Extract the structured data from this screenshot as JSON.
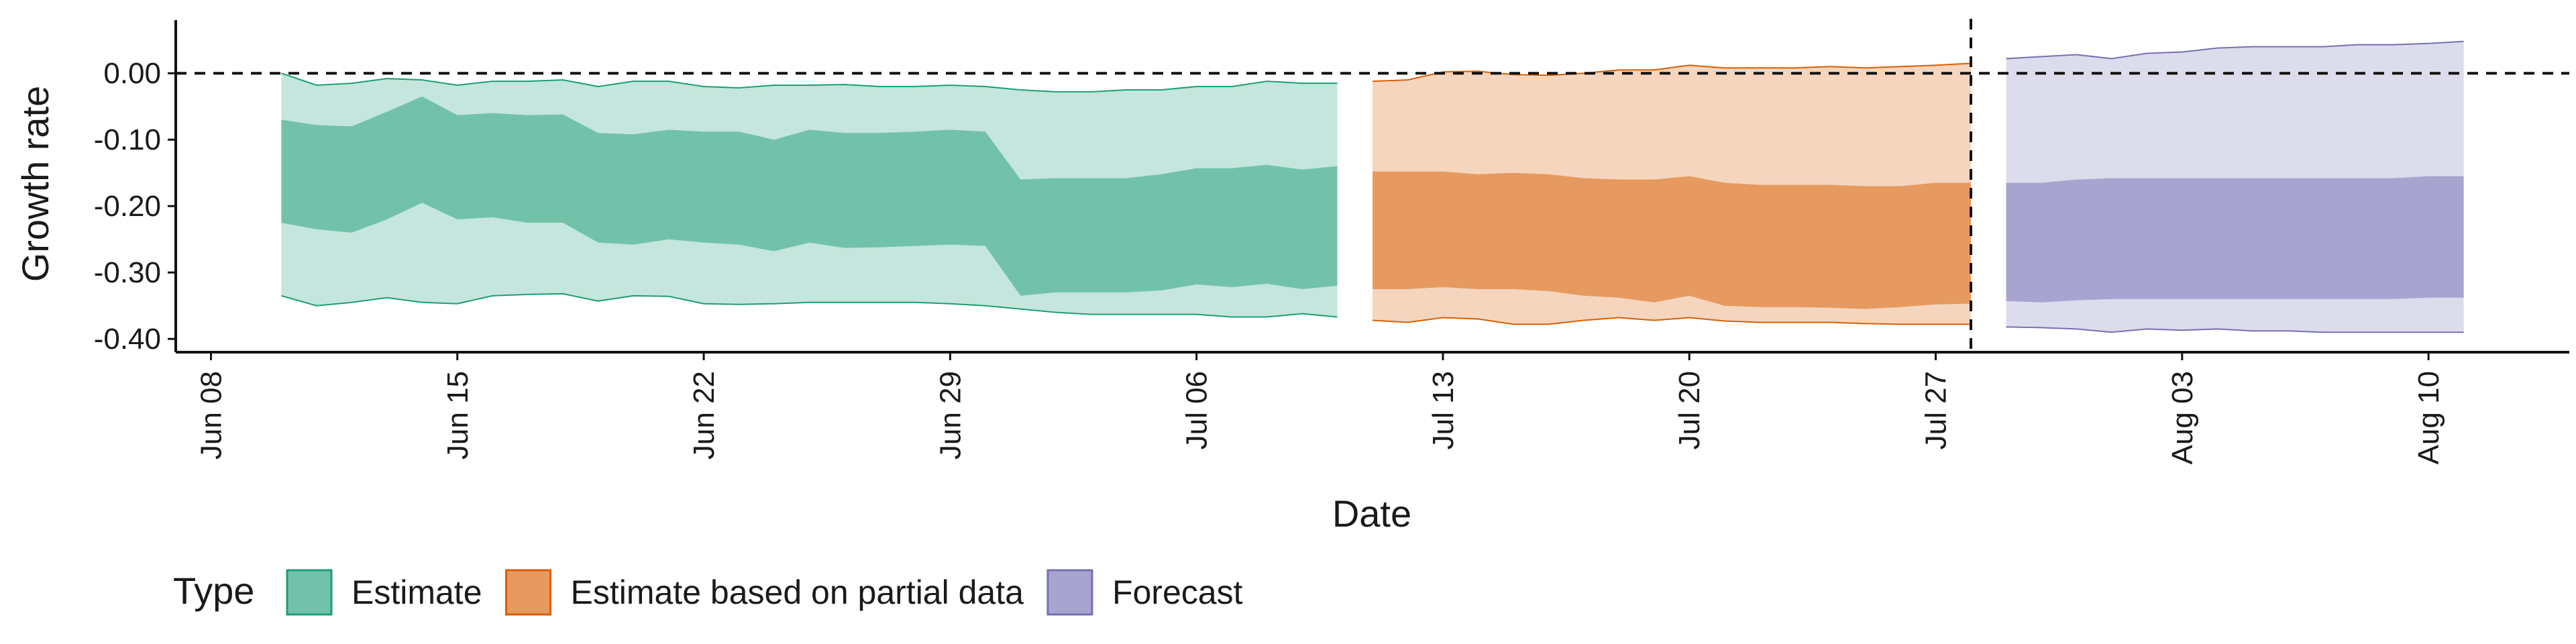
{
  "chart_data": {
    "type": "area",
    "title": "",
    "xlabel": "Date",
    "ylabel": "Growth rate",
    "x_range": [
      "2020-06-07",
      "2020-08-14"
    ],
    "ylim": [
      -0.42,
      0.08
    ],
    "y_ticks": [
      0.0,
      -0.1,
      -0.2,
      -0.3,
      -0.4
    ],
    "y_tick_labels": [
      "0.00",
      "-0.10",
      "-0.20",
      "-0.30",
      "-0.40"
    ],
    "x_ticks": [
      "2020-06-08",
      "2020-06-15",
      "2020-06-22",
      "2020-06-29",
      "2020-07-06",
      "2020-07-13",
      "2020-07-20",
      "2020-07-27",
      "2020-08-03",
      "2020-08-10"
    ],
    "x_tick_labels": [
      "Jun 08",
      "Jun 15",
      "Jun 22",
      "Jun 29",
      "Jul 06",
      "Jul 13",
      "Jul 20",
      "Jul 27",
      "Aug 03",
      "Aug 10"
    ],
    "reference_lines": {
      "horizontal_y": 0.0,
      "vertical_x": "2020-07-28"
    },
    "grid": false,
    "legend": {
      "title": "Type",
      "position": "bottom"
    },
    "series": [
      {
        "name": "Estimate",
        "color": "#1b9e77",
        "fill_inner": "#72c2aa",
        "fill_outer": "#c4e6dc",
        "dates": [
          "2020-06-10",
          "2020-06-11",
          "2020-06-12",
          "2020-06-13",
          "2020-06-14",
          "2020-06-15",
          "2020-06-16",
          "2020-06-17",
          "2020-06-18",
          "2020-06-19",
          "2020-06-20",
          "2020-06-21",
          "2020-06-22",
          "2020-06-23",
          "2020-06-24",
          "2020-06-25",
          "2020-06-26",
          "2020-06-27",
          "2020-06-28",
          "2020-06-29",
          "2020-06-30",
          "2020-07-01",
          "2020-07-02",
          "2020-07-03",
          "2020-07-04",
          "2020-07-05",
          "2020-07-06",
          "2020-07-07",
          "2020-07-08",
          "2020-07-09",
          "2020-07-10"
        ],
        "lower_90": [
          -0.335,
          -0.35,
          -0.345,
          -0.338,
          -0.345,
          -0.347,
          -0.335,
          -0.333,
          -0.332,
          -0.343,
          -0.335,
          -0.336,
          -0.347,
          -0.348,
          -0.347,
          -0.345,
          -0.345,
          -0.345,
          -0.345,
          -0.347,
          -0.35,
          -0.355,
          -0.36,
          -0.363,
          -0.363,
          -0.363,
          -0.363,
          -0.367,
          -0.367,
          -0.362,
          -0.367
        ],
        "lower_50": [
          -0.225,
          -0.235,
          -0.24,
          -0.22,
          -0.195,
          -0.22,
          -0.217,
          -0.225,
          -0.225,
          -0.255,
          -0.258,
          -0.25,
          -0.255,
          -0.258,
          -0.268,
          -0.255,
          -0.263,
          -0.262,
          -0.26,
          -0.258,
          -0.26,
          -0.335,
          -0.33,
          -0.33,
          -0.33,
          -0.327,
          -0.318,
          -0.322,
          -0.317,
          -0.325,
          -0.32
        ],
        "upper_50": [
          -0.07,
          -0.078,
          -0.08,
          -0.058,
          -0.035,
          -0.063,
          -0.06,
          -0.063,
          -0.062,
          -0.09,
          -0.092,
          -0.085,
          -0.088,
          -0.088,
          -0.1,
          -0.085,
          -0.09,
          -0.09,
          -0.088,
          -0.085,
          -0.088,
          -0.16,
          -0.158,
          -0.158,
          -0.158,
          -0.152,
          -0.143,
          -0.143,
          -0.138,
          -0.145,
          -0.14
        ],
        "upper_90": [
          0.0,
          -0.018,
          -0.015,
          -0.008,
          -0.01,
          -0.018,
          -0.012,
          -0.012,
          -0.01,
          -0.02,
          -0.012,
          -0.012,
          -0.02,
          -0.022,
          -0.018,
          -0.018,
          -0.017,
          -0.02,
          -0.02,
          -0.018,
          -0.02,
          -0.025,
          -0.028,
          -0.028,
          -0.025,
          -0.025,
          -0.02,
          -0.02,
          -0.012,
          -0.015,
          -0.015
        ]
      },
      {
        "name": "Estimate based on partial data",
        "color": "#d95f02",
        "fill_inner": "#e69a5f",
        "fill_outer": "#f5d5be",
        "dates": [
          "2020-07-11",
          "2020-07-12",
          "2020-07-13",
          "2020-07-14",
          "2020-07-15",
          "2020-07-16",
          "2020-07-17",
          "2020-07-18",
          "2020-07-19",
          "2020-07-20",
          "2020-07-21",
          "2020-07-22",
          "2020-07-23",
          "2020-07-24",
          "2020-07-25",
          "2020-07-26",
          "2020-07-27",
          "2020-07-28"
        ],
        "lower_90": [
          -0.372,
          -0.375,
          -0.368,
          -0.37,
          -0.378,
          -0.378,
          -0.372,
          -0.368,
          -0.372,
          -0.368,
          -0.373,
          -0.375,
          -0.375,
          -0.375,
          -0.377,
          -0.378,
          -0.378,
          -0.378
        ],
        "lower_50": [
          -0.325,
          -0.325,
          -0.322,
          -0.325,
          -0.325,
          -0.328,
          -0.335,
          -0.338,
          -0.345,
          -0.335,
          -0.35,
          -0.352,
          -0.352,
          -0.353,
          -0.355,
          -0.352,
          -0.348,
          -0.347
        ],
        "upper_50": [
          -0.148,
          -0.148,
          -0.148,
          -0.152,
          -0.15,
          -0.152,
          -0.158,
          -0.16,
          -0.16,
          -0.155,
          -0.165,
          -0.168,
          -0.168,
          -0.168,
          -0.17,
          -0.17,
          -0.165,
          -0.165
        ],
        "upper_90": [
          -0.012,
          -0.01,
          0.002,
          0.003,
          -0.002,
          -0.003,
          0.0,
          0.005,
          0.005,
          0.012,
          0.008,
          0.008,
          0.008,
          0.01,
          0.008,
          0.01,
          0.012,
          0.015
        ]
      },
      {
        "name": "Forecast",
        "color": "#7570b3",
        "fill_inner": "#a8a4d0",
        "fill_outer": "#dcdcec",
        "dates": [
          "2020-07-29",
          "2020-07-30",
          "2020-07-31",
          "2020-08-01",
          "2020-08-02",
          "2020-08-03",
          "2020-08-04",
          "2020-08-05",
          "2020-08-06",
          "2020-08-07",
          "2020-08-08",
          "2020-08-09",
          "2020-08-10",
          "2020-08-11"
        ],
        "lower_90": [
          -0.382,
          -0.383,
          -0.385,
          -0.39,
          -0.385,
          -0.387,
          -0.385,
          -0.388,
          -0.388,
          -0.39,
          -0.39,
          -0.39,
          -0.39,
          -0.39
        ],
        "lower_50": [
          -0.343,
          -0.345,
          -0.342,
          -0.34,
          -0.34,
          -0.34,
          -0.34,
          -0.34,
          -0.34,
          -0.34,
          -0.34,
          -0.34,
          -0.338,
          -0.338
        ],
        "upper_50": [
          -0.165,
          -0.165,
          -0.16,
          -0.158,
          -0.158,
          -0.158,
          -0.158,
          -0.158,
          -0.158,
          -0.158,
          -0.158,
          -0.158,
          -0.155,
          -0.155
        ],
        "upper_90": [
          0.022,
          0.025,
          0.028,
          0.022,
          0.03,
          0.032,
          0.038,
          0.04,
          0.04,
          0.04,
          0.043,
          0.043,
          0.045,
          0.048
        ]
      }
    ]
  }
}
